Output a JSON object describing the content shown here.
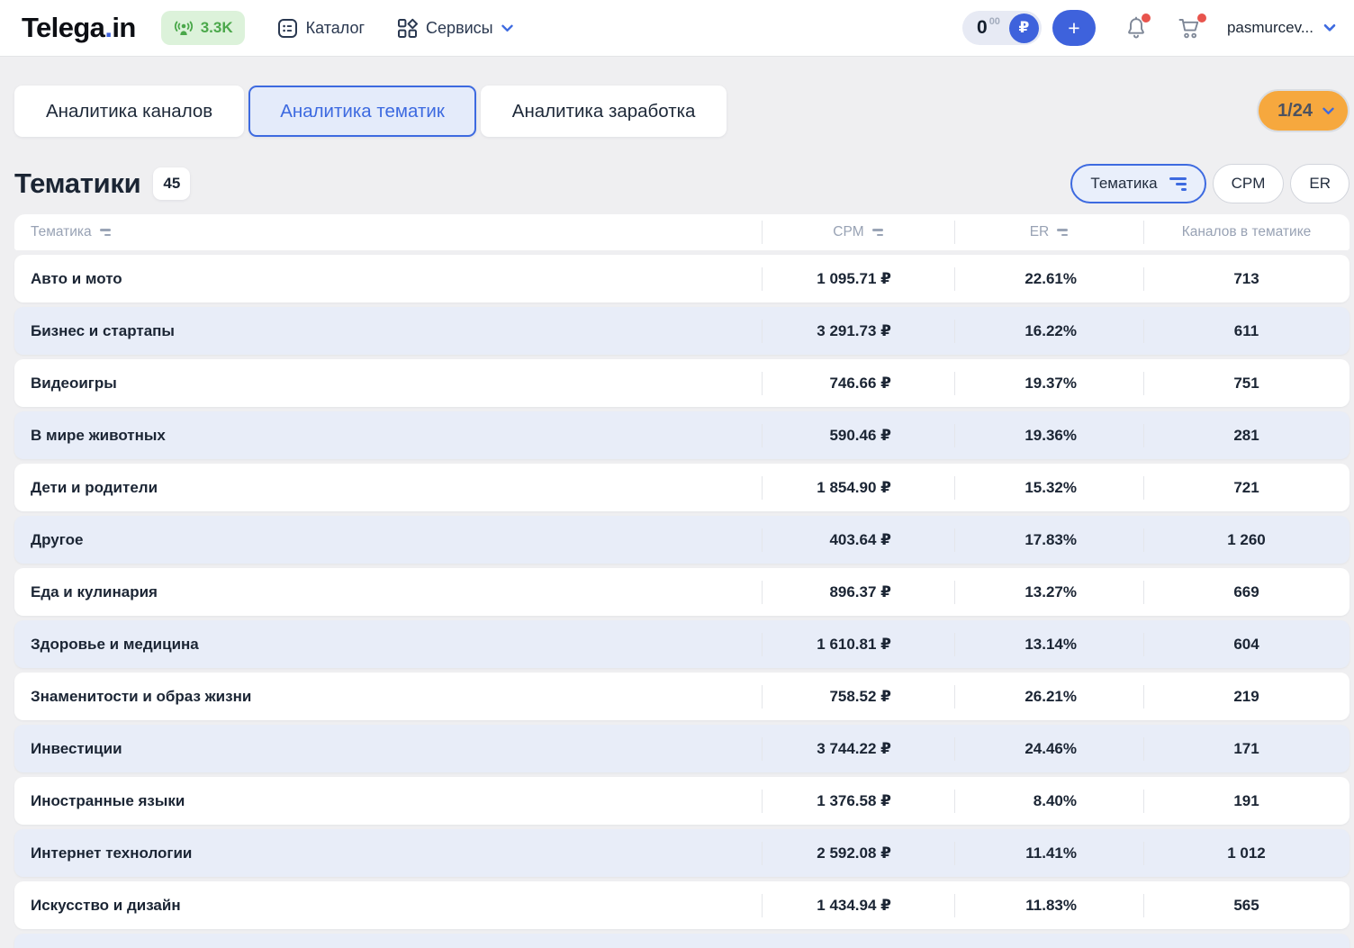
{
  "colors": {
    "accent_blue": "#3E62DC",
    "tab_blue": "#3D6AE0",
    "orange": "#F6A83E",
    "green": "#4BA84B",
    "green_badge_bg": "#DCF2DA",
    "row_alt_bg": "#E8EDF8",
    "page_bg": "#EFEFF1",
    "text_dark": "#1B2534",
    "muted_header": "#98A2B4",
    "alert_red": "#E8544D"
  },
  "header": {
    "logo_text1": "Telega",
    "logo_dot": ".",
    "logo_text2": "in",
    "live_count": "3.3K",
    "catalog_label": "Каталог",
    "services_label": "Сервисы",
    "balance_int": "0",
    "balance_frac": "00",
    "currency_symbol": "₽",
    "topup_label": "+",
    "username": "pasmurcev..."
  },
  "tabs": [
    {
      "label": "Аналитика каналов",
      "active": false
    },
    {
      "label": "Аналитика тематик",
      "active": true
    },
    {
      "label": "Аналитика заработка",
      "active": false
    }
  ],
  "pagination_label": "1/24",
  "page": {
    "title": "Тематики",
    "count": "45"
  },
  "filters": [
    {
      "label": "Тематика",
      "active": true
    },
    {
      "label": "CPM",
      "active": false
    },
    {
      "label": "ER",
      "active": false
    }
  ],
  "table": {
    "columns": [
      {
        "label": "Тематика",
        "sortable": true
      },
      {
        "label": "CPM",
        "sortable": true
      },
      {
        "label": "ER",
        "sortable": true
      },
      {
        "label": "Каналов в тематике",
        "sortable": false
      }
    ],
    "rows": [
      {
        "topic": "Авто и мото",
        "cpm": "1 095.71 ₽",
        "er": "22.61%",
        "channels": "713"
      },
      {
        "topic": "Бизнес и стартапы",
        "cpm": "3 291.73 ₽",
        "er": "16.22%",
        "channels": "611"
      },
      {
        "topic": "Видеоигры",
        "cpm": "746.66 ₽",
        "er": "19.37%",
        "channels": "751"
      },
      {
        "topic": "В мире животных",
        "cpm": "590.46 ₽",
        "er": "19.36%",
        "channels": "281"
      },
      {
        "topic": "Дети и родители",
        "cpm": "1 854.90 ₽",
        "er": "15.32%",
        "channels": "721"
      },
      {
        "topic": "Другое",
        "cpm": "403.64 ₽",
        "er": "17.83%",
        "channels": "1 260"
      },
      {
        "topic": "Еда и кулинария",
        "cpm": "896.37 ₽",
        "er": "13.27%",
        "channels": "669"
      },
      {
        "topic": "Здоровье и медицина",
        "cpm": "1 610.81 ₽",
        "er": "13.14%",
        "channels": "604"
      },
      {
        "topic": "Знаменитости и образ жизни",
        "cpm": "758.52 ₽",
        "er": "26.21%",
        "channels": "219"
      },
      {
        "topic": "Инвестиции",
        "cpm": "3 744.22 ₽",
        "er": "24.46%",
        "channels": "171"
      },
      {
        "topic": "Иностранные языки",
        "cpm": "1 376.58 ₽",
        "er": "8.40%",
        "channels": "191"
      },
      {
        "topic": "Интернет технологии",
        "cpm": "2 592.08 ₽",
        "er": "11.41%",
        "channels": "1 012"
      },
      {
        "topic": "Искусство и дизайн",
        "cpm": "1 434.94 ₽",
        "er": "11.83%",
        "channels": "565"
      }
    ],
    "partial_next_row_visible": true
  }
}
